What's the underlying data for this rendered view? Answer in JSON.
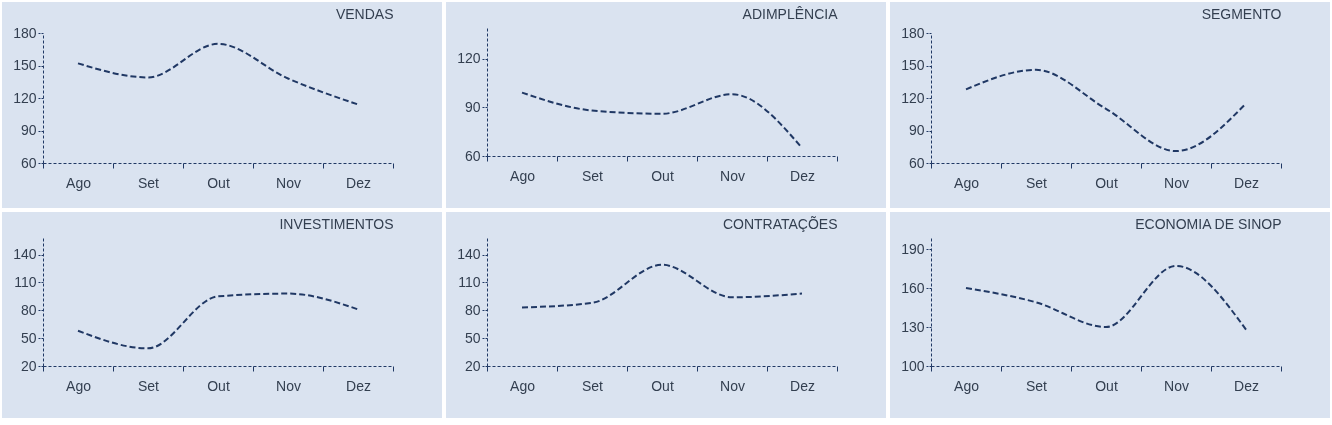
{
  "chart_data": [
    {
      "type": "line",
      "title": "VENDAS",
      "categories": [
        "Ago",
        "Set",
        "Out",
        "Nov",
        "Dez"
      ],
      "ylim": [
        60,
        180
      ],
      "yticks": [
        60,
        90,
        120,
        150,
        180
      ],
      "line_style": "dashed",
      "series": [
        {
          "color": "#203864",
          "values": [
            152,
            139,
            170,
            138,
            114
          ]
        }
      ]
    },
    {
      "type": "line",
      "title": "ADIMPLÊNCIA",
      "categories": [
        "Ago",
        "Set",
        "Out",
        "Nov",
        "Dez"
      ],
      "ylim": [
        60,
        140
      ],
      "yticks": [
        60,
        90,
        120
      ],
      "line_style": "dashed",
      "series": [
        {
          "color": "#203864",
          "values": [
            99,
            88,
            86,
            98,
            65
          ]
        }
      ]
    },
    {
      "type": "line",
      "title": "SEGMENTO",
      "categories": [
        "Ago",
        "Set",
        "Out",
        "Nov",
        "Dez"
      ],
      "ylim": [
        60,
        180
      ],
      "yticks": [
        60,
        90,
        120,
        150,
        180
      ],
      "line_style": "dashed",
      "series": [
        {
          "color": "#203864",
          "values": [
            128,
            146,
            110,
            71,
            115
          ]
        }
      ]
    },
    {
      "type": "line",
      "title": "INVESTIMENTOS",
      "categories": [
        "Ago",
        "Set",
        "Out",
        "Nov",
        "Dez"
      ],
      "ylim": [
        20,
        160
      ],
      "yticks": [
        20,
        50,
        80,
        110,
        140
      ],
      "line_style": "dashed",
      "series": [
        {
          "color": "#203864",
          "values": [
            58,
            39,
            95,
            98,
            81
          ]
        }
      ]
    },
    {
      "type": "line",
      "title": "CONTRATAÇÕES",
      "categories": [
        "Ago",
        "Set",
        "Out",
        "Nov",
        "Dez"
      ],
      "ylim": [
        20,
        160
      ],
      "yticks": [
        20,
        50,
        80,
        110,
        140
      ],
      "line_style": "dashed",
      "series": [
        {
          "color": "#203864",
          "values": [
            83,
            88,
            129,
            94,
            98
          ]
        }
      ]
    },
    {
      "type": "line",
      "title": "ECONOMIA DE SINOP",
      "categories": [
        "Ago",
        "Set",
        "Out",
        "Nov",
        "Dez"
      ],
      "ylim": [
        100,
        200
      ],
      "yticks": [
        100,
        130,
        160,
        190
      ],
      "line_style": "dashed",
      "series": [
        {
          "color": "#203864",
          "values": [
            160,
            149,
            130,
            177,
            128
          ]
        }
      ]
    }
  ]
}
